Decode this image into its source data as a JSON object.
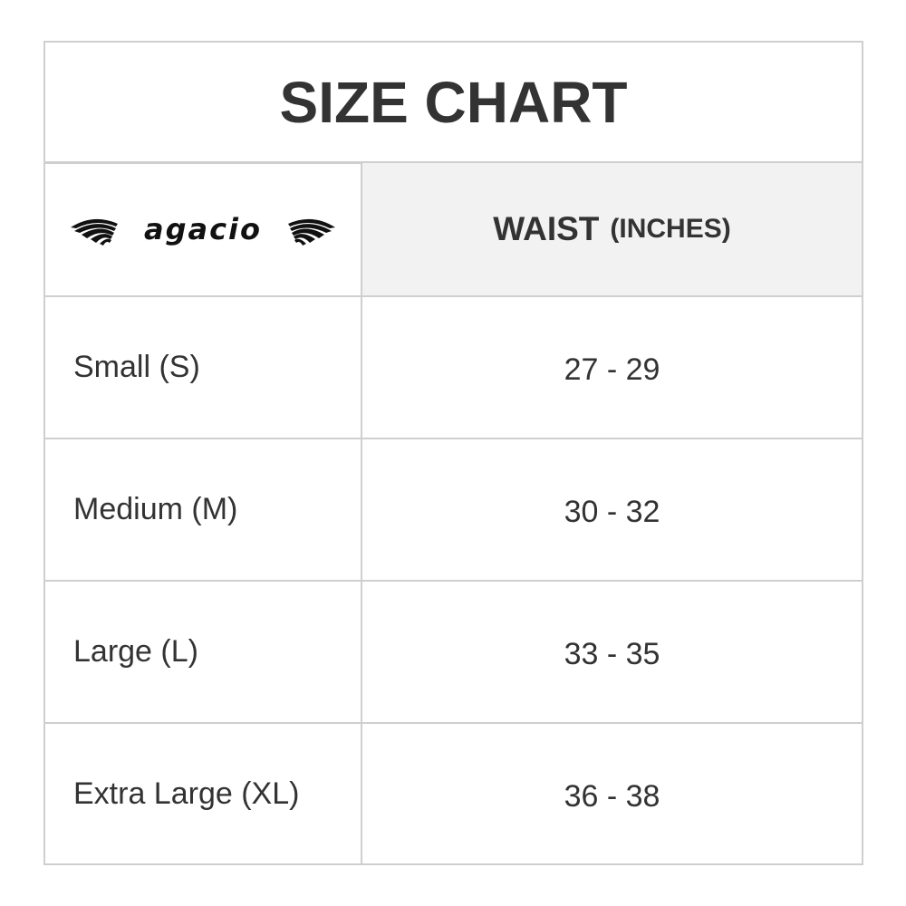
{
  "title": "SIZE CHART",
  "logo_text": "agacio",
  "header": {
    "column_main": "WAIST",
    "column_unit": "(INCHES)"
  },
  "rows": [
    {
      "size": "Small (S)",
      "waist": "27 - 29"
    },
    {
      "size": "Medium (M)",
      "waist": "30 - 32"
    },
    {
      "size": "Large (L)",
      "waist": "33 - 35"
    },
    {
      "size": "Extra Large (XL)",
      "waist": "36 - 38"
    }
  ],
  "colors": {
    "border": "#cfcfcf",
    "header_bg": "#f2f2f2",
    "text": "#333333"
  }
}
